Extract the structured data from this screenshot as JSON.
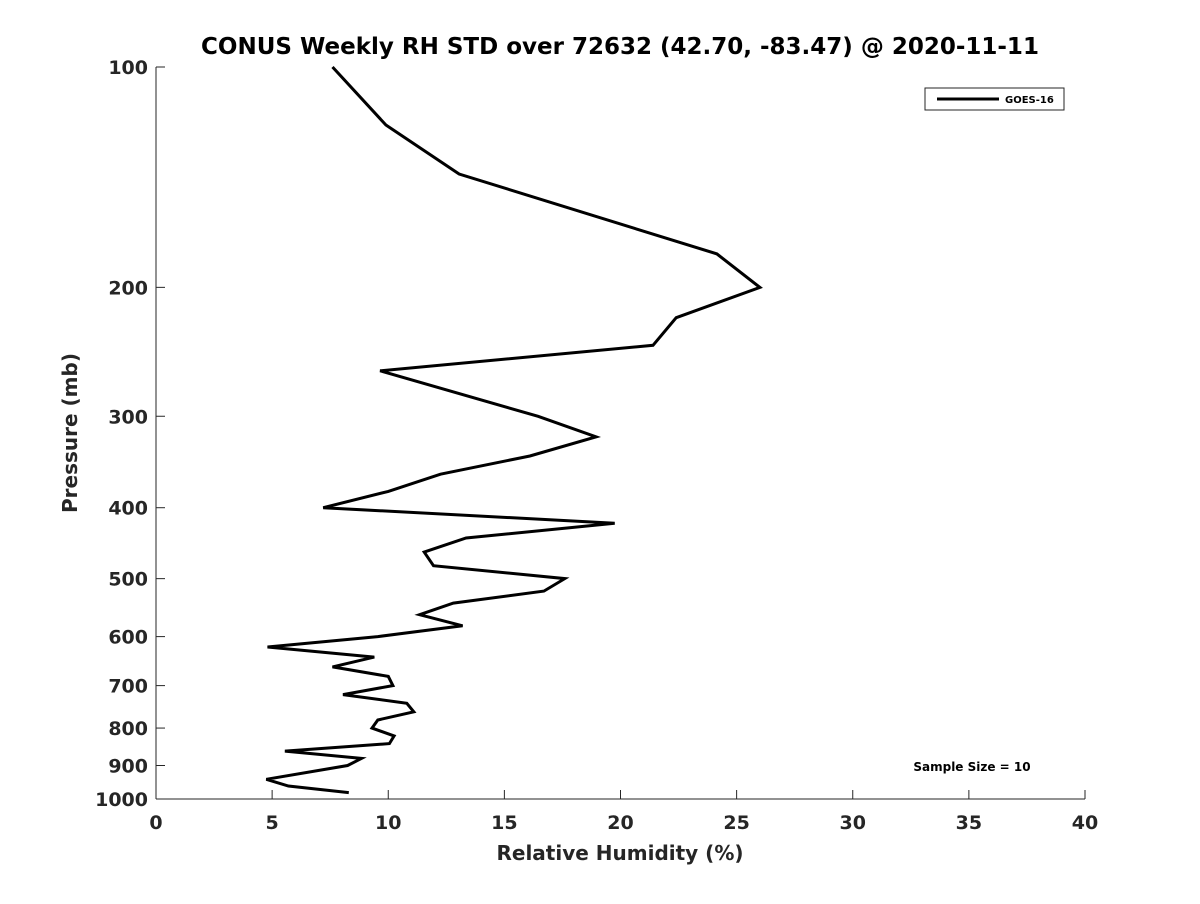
{
  "chart_data": {
    "type": "line",
    "title": "CONUS Weekly RH STD over 72632 (42.70, -83.47) @ 2020-11-11",
    "xlabel": "Relative Humidity (%)",
    "ylabel": "Pressure (mb)",
    "xlim": [
      0,
      40
    ],
    "ylim": [
      100,
      1000
    ],
    "yscale": "log",
    "yreversed": true,
    "grid": false,
    "legend_position": "top-right",
    "xticks": [
      "0",
      "5",
      "10",
      "15",
      "20",
      "25",
      "30",
      "35",
      "40"
    ],
    "yticks": [
      "100",
      "200",
      "300",
      "400",
      "500",
      "600",
      "700",
      "800",
      "900",
      "1000"
    ],
    "annotation": "Sample Size = 10",
    "series": [
      {
        "name": "GOES-16",
        "color": "#000000",
        "points": [
          [
            7.6,
            100
          ],
          [
            9.9,
            120
          ],
          [
            13.05,
            140
          ],
          [
            24.15,
            180
          ],
          [
            26.0,
            200
          ],
          [
            22.4,
            220
          ],
          [
            21.4,
            240
          ],
          [
            9.65,
            260
          ],
          [
            16.45,
            300
          ],
          [
            18.95,
            320
          ],
          [
            16.1,
            340
          ],
          [
            12.25,
            360
          ],
          [
            10.0,
            380
          ],
          [
            7.2,
            400
          ],
          [
            19.75,
            420
          ],
          [
            13.35,
            440
          ],
          [
            11.55,
            460
          ],
          [
            11.95,
            480
          ],
          [
            17.6,
            500
          ],
          [
            16.7,
            520
          ],
          [
            12.8,
            540
          ],
          [
            11.35,
            560
          ],
          [
            13.2,
            580
          ],
          [
            9.55,
            600
          ],
          [
            4.8,
            620
          ],
          [
            9.4,
            640
          ],
          [
            7.6,
            660
          ],
          [
            10.0,
            680
          ],
          [
            10.2,
            700
          ],
          [
            8.05,
            720
          ],
          [
            10.8,
            740
          ],
          [
            11.1,
            760
          ],
          [
            9.55,
            780
          ],
          [
            9.3,
            800
          ],
          [
            10.25,
            820
          ],
          [
            10.05,
            840
          ],
          [
            5.55,
            860
          ],
          [
            8.85,
            880
          ],
          [
            8.25,
            900
          ],
          [
            4.75,
            940
          ],
          [
            5.7,
            960
          ],
          [
            8.3,
            980
          ]
        ]
      }
    ]
  }
}
